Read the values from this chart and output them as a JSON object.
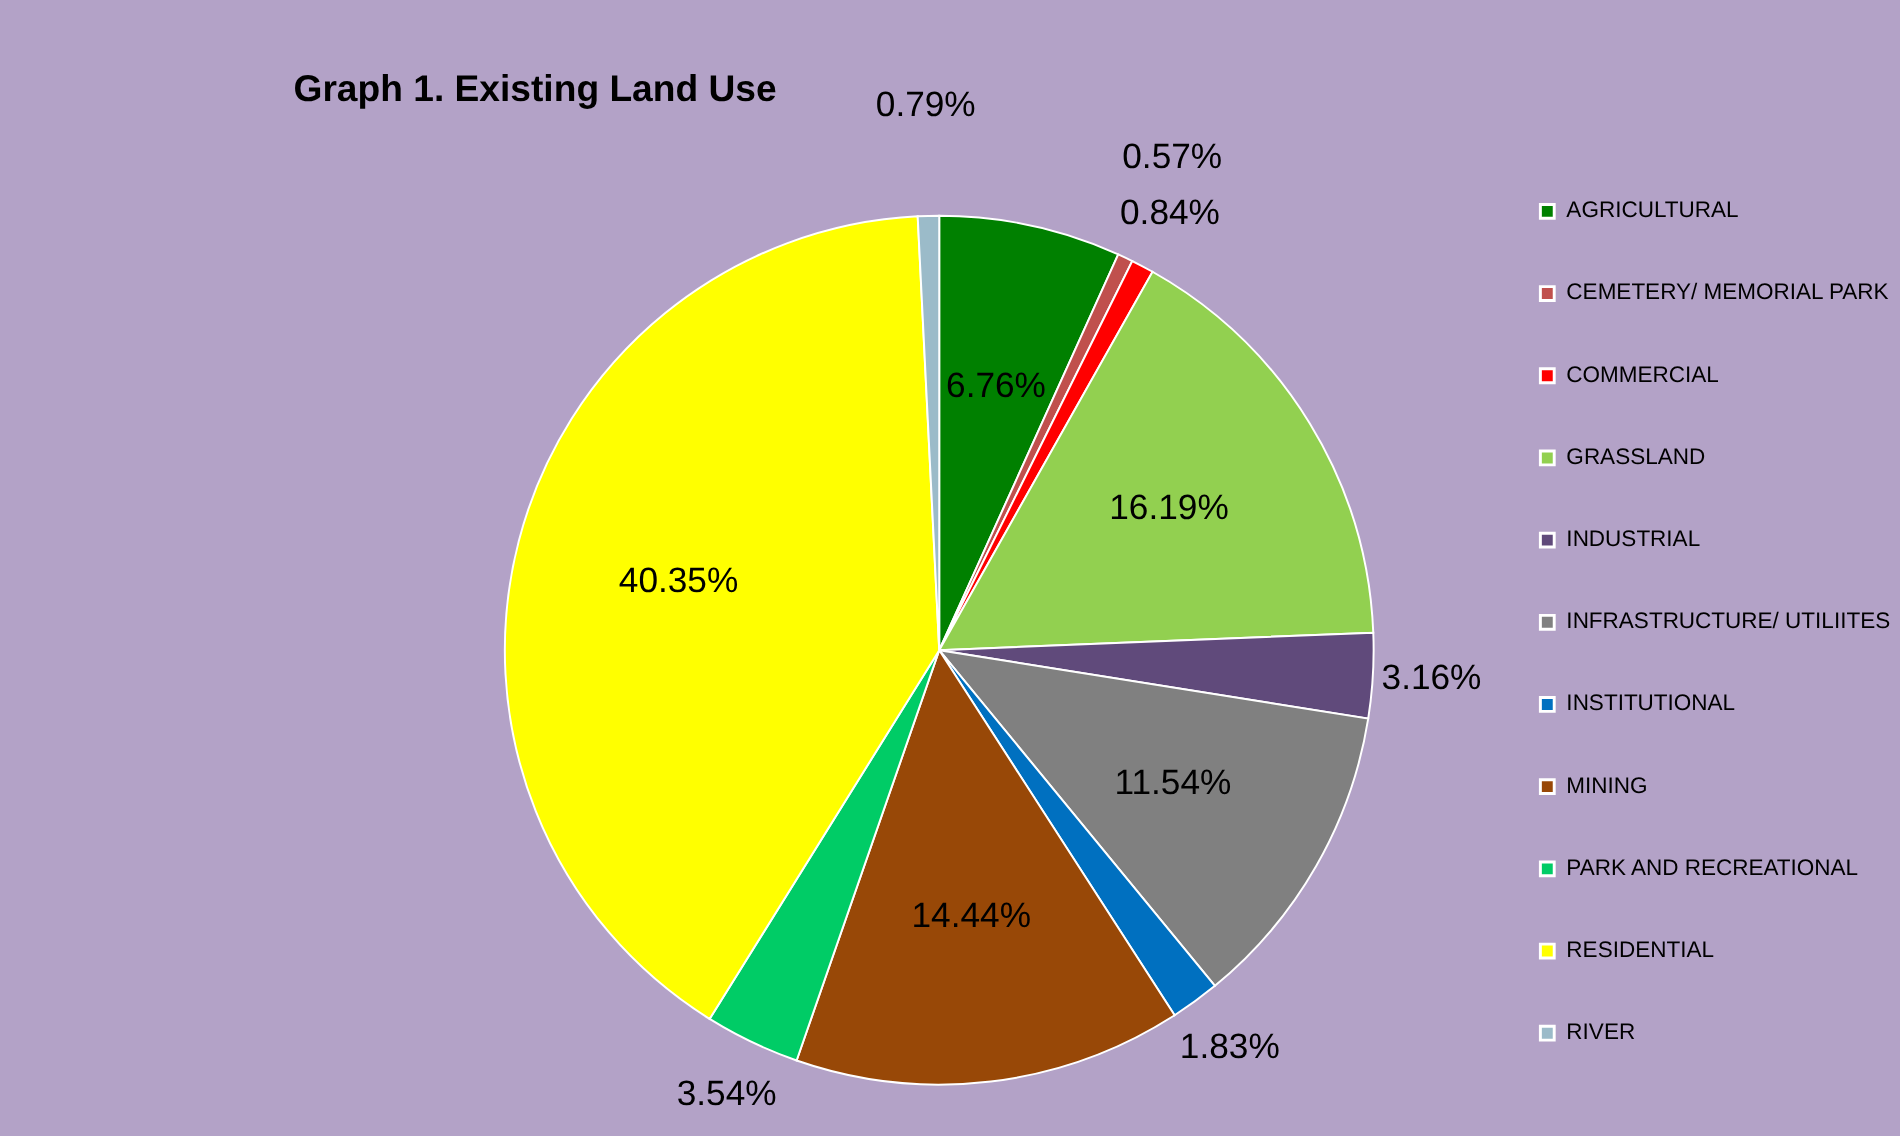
{
  "chart_data": {
    "type": "pie",
    "title": "Graph 1. Existing Land Use",
    "categories": [
      "AGRICULTURAL",
      "CEMETERY/ MEMORIAL PARK",
      "COMMERCIAL",
      "GRASSLAND",
      "INDUSTRIAL",
      "INFRASTRUCTURE/ UTILIITES",
      "INSTITUTIONAL",
      "MINING",
      "PARK AND RECREATIONAL",
      "RESIDENTIAL",
      "RIVER"
    ],
    "values": [
      6.76,
      0.57,
      0.84,
      16.19,
      3.16,
      11.54,
      1.83,
      14.44,
      3.54,
      40.35,
      0.79
    ],
    "colors": [
      "#008000",
      "#c0504d",
      "#ff0000",
      "#92d050",
      "#604a7b",
      "#808080",
      "#0070c0",
      "#984807",
      "#00cc66",
      "#ffff00",
      "#9bbbc9"
    ],
    "value_labels": [
      "6.76%",
      "0.57%",
      "0.84%",
      "16.19%",
      "3.16%",
      "11.54%",
      "1.83%",
      "14.44%",
      "3.54%",
      "40.35%",
      "0.79%"
    ],
    "legend": "right"
  }
}
